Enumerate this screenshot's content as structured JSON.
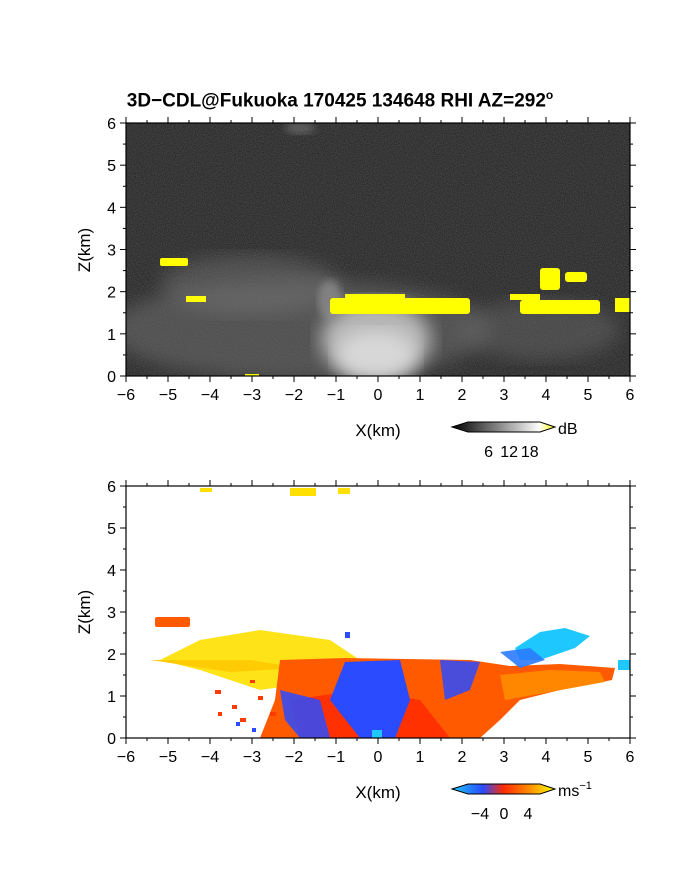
{
  "title": {
    "prefix": "3D−CDL@Fukuoka 170425 134648 RHI AZ=292",
    "superscript": "o"
  },
  "chart_data": [
    {
      "type": "heatmap",
      "variable": "reflectivity",
      "xlabel": "X(km)",
      "ylabel": "Z(km)",
      "xlim": [
        -6,
        6
      ],
      "ylim": [
        0,
        6
      ],
      "xticks": [
        "−6",
        "−5",
        "−4",
        "−3",
        "−2",
        "−1",
        "0",
        "1",
        "2",
        "3",
        "4",
        "5",
        "6"
      ],
      "yticks": [
        "0",
        "1",
        "2",
        "3",
        "4",
        "5",
        "6"
      ],
      "colorbar": {
        "unit": "dB",
        "ticks": [
          "6",
          "12",
          "18"
        ],
        "range": [
          0,
          21
        ],
        "colors": [
          "#000000",
          "#ffffff",
          "#ffff00"
        ]
      },
      "features": [
        {
          "name": "strong echo layer",
          "x": [
            -1.1,
            2.3
          ],
          "z": [
            1.5,
            1.8
          ],
          "value_db": 20
        },
        {
          "name": "strong echo patch",
          "x": [
            3.8,
            5.0
          ],
          "z": [
            1.5,
            2.6
          ],
          "value_db": 20
        },
        {
          "name": "elevated patch",
          "x": [
            -5.3,
            -4.6
          ],
          "z": [
            2.65,
            2.85
          ],
          "value_db": 20
        },
        {
          "name": "weak echo",
          "x": [
            -1.0,
            1.0
          ],
          "z": [
            0.0,
            1.5
          ],
          "value_db": 12
        }
      ]
    },
    {
      "type": "heatmap",
      "variable": "doppler velocity",
      "xlabel": "X(km)",
      "ylabel": "Z(km)",
      "xlim": [
        -6,
        6
      ],
      "ylim": [
        0,
        6
      ],
      "xticks": [
        "−6",
        "−5",
        "−4",
        "−3",
        "−2",
        "−1",
        "0",
        "1",
        "2",
        "3",
        "4",
        "5",
        "6"
      ],
      "yticks": [
        "0",
        "1",
        "2",
        "3",
        "4",
        "5",
        "6"
      ],
      "colorbar": {
        "unit": "ms",
        "unit_exponent": "−1",
        "ticks": [
          "−4",
          "0",
          "4"
        ],
        "range": [
          -6,
          6
        ],
        "colors": [
          "#1ec8ff",
          "#2a4bff",
          "#ff2a00",
          "#ff8c00",
          "#ffff00"
        ]
      },
      "features": [
        {
          "name": "outflow near radar",
          "x": [
            -1.0,
            0.5
          ],
          "z": [
            0.0,
            1.7
          ],
          "value_ms": -3
        },
        {
          "name": "outflow band",
          "x": [
            -3.0,
            3.0
          ],
          "z": [
            0.0,
            1.8
          ],
          "value_ms": 1.5
        },
        {
          "name": "upper layer",
          "x": [
            -5.0,
            -1.0
          ],
          "z": [
            1.5,
            2.3
          ],
          "value_ms": 5
        },
        {
          "name": "elevated patch",
          "x": [
            -5.2,
            -4.6
          ],
          "z": [
            2.6,
            2.85
          ],
          "value_ms": 3
        },
        {
          "name": "approaching patch",
          "x": [
            3.5,
            5.0
          ],
          "z": [
            1.8,
            2.6
          ],
          "value_ms": -4
        },
        {
          "name": "upper echoes",
          "x": [
            -2.2,
            -0.6
          ],
          "z": [
            5.8,
            5.95
          ],
          "value_ms": 5
        }
      ]
    }
  ]
}
